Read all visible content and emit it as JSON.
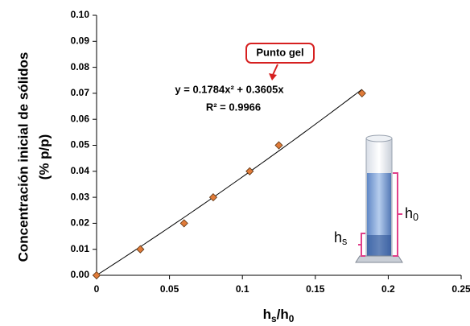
{
  "chart_data": {
    "type": "scatter",
    "ylabel": [
      "Concentración inicial de sólidos",
      "(% p/p)"
    ],
    "xlabel": [
      {
        "text": "h"
      },
      {
        "text": "s",
        "sub": true
      },
      {
        "text": "/h"
      },
      {
        "text": "0",
        "sub": true
      }
    ],
    "x": [
      0,
      0.03,
      0.06,
      0.08,
      0.105,
      0.125,
      0.182
    ],
    "values": [
      0,
      0.01,
      0.02,
      0.03,
      0.04,
      0.05,
      0.07
    ],
    "color": "#e07b39",
    "xlim": [
      0,
      0.25
    ],
    "xticks": [
      0,
      0.05,
      0.1,
      0.15,
      0.2,
      0.25
    ],
    "ylim": [
      0,
      0.1
    ],
    "yticks": [
      {
        "value": 0,
        "label": "0.00"
      },
      {
        "value": 0.01,
        "label": "0.01"
      },
      {
        "value": 0.02,
        "label": "0.02"
      },
      {
        "value": 0.03,
        "label": "0.03"
      },
      {
        "value": 0.04,
        "label": "0.04"
      },
      {
        "value": 0.05,
        "label": "0.05"
      },
      {
        "value": 0.06,
        "label": "0.06"
      },
      {
        "value": 0.07,
        "label": "0.07"
      },
      {
        "value": 0.08,
        "label": "0.08"
      },
      {
        "value": 0.09,
        "label": "0.09"
      },
      {
        "value": 0.1,
        "label": "0.10"
      }
    ],
    "trendline": {
      "coefficients": [
        0.1784,
        0.3605
      ],
      "equation": "y = 0.1784x² + 0.3605x",
      "r2": "R² = 0.9966"
    },
    "annotation": "Punto gel",
    "illustration": {
      "h0": [
        {
          "text": "h"
        },
        {
          "text": "0",
          "sub": true
        }
      ],
      "hs": [
        {
          "text": "h"
        },
        {
          "text": "s",
          "sub": true
        }
      ]
    }
  }
}
